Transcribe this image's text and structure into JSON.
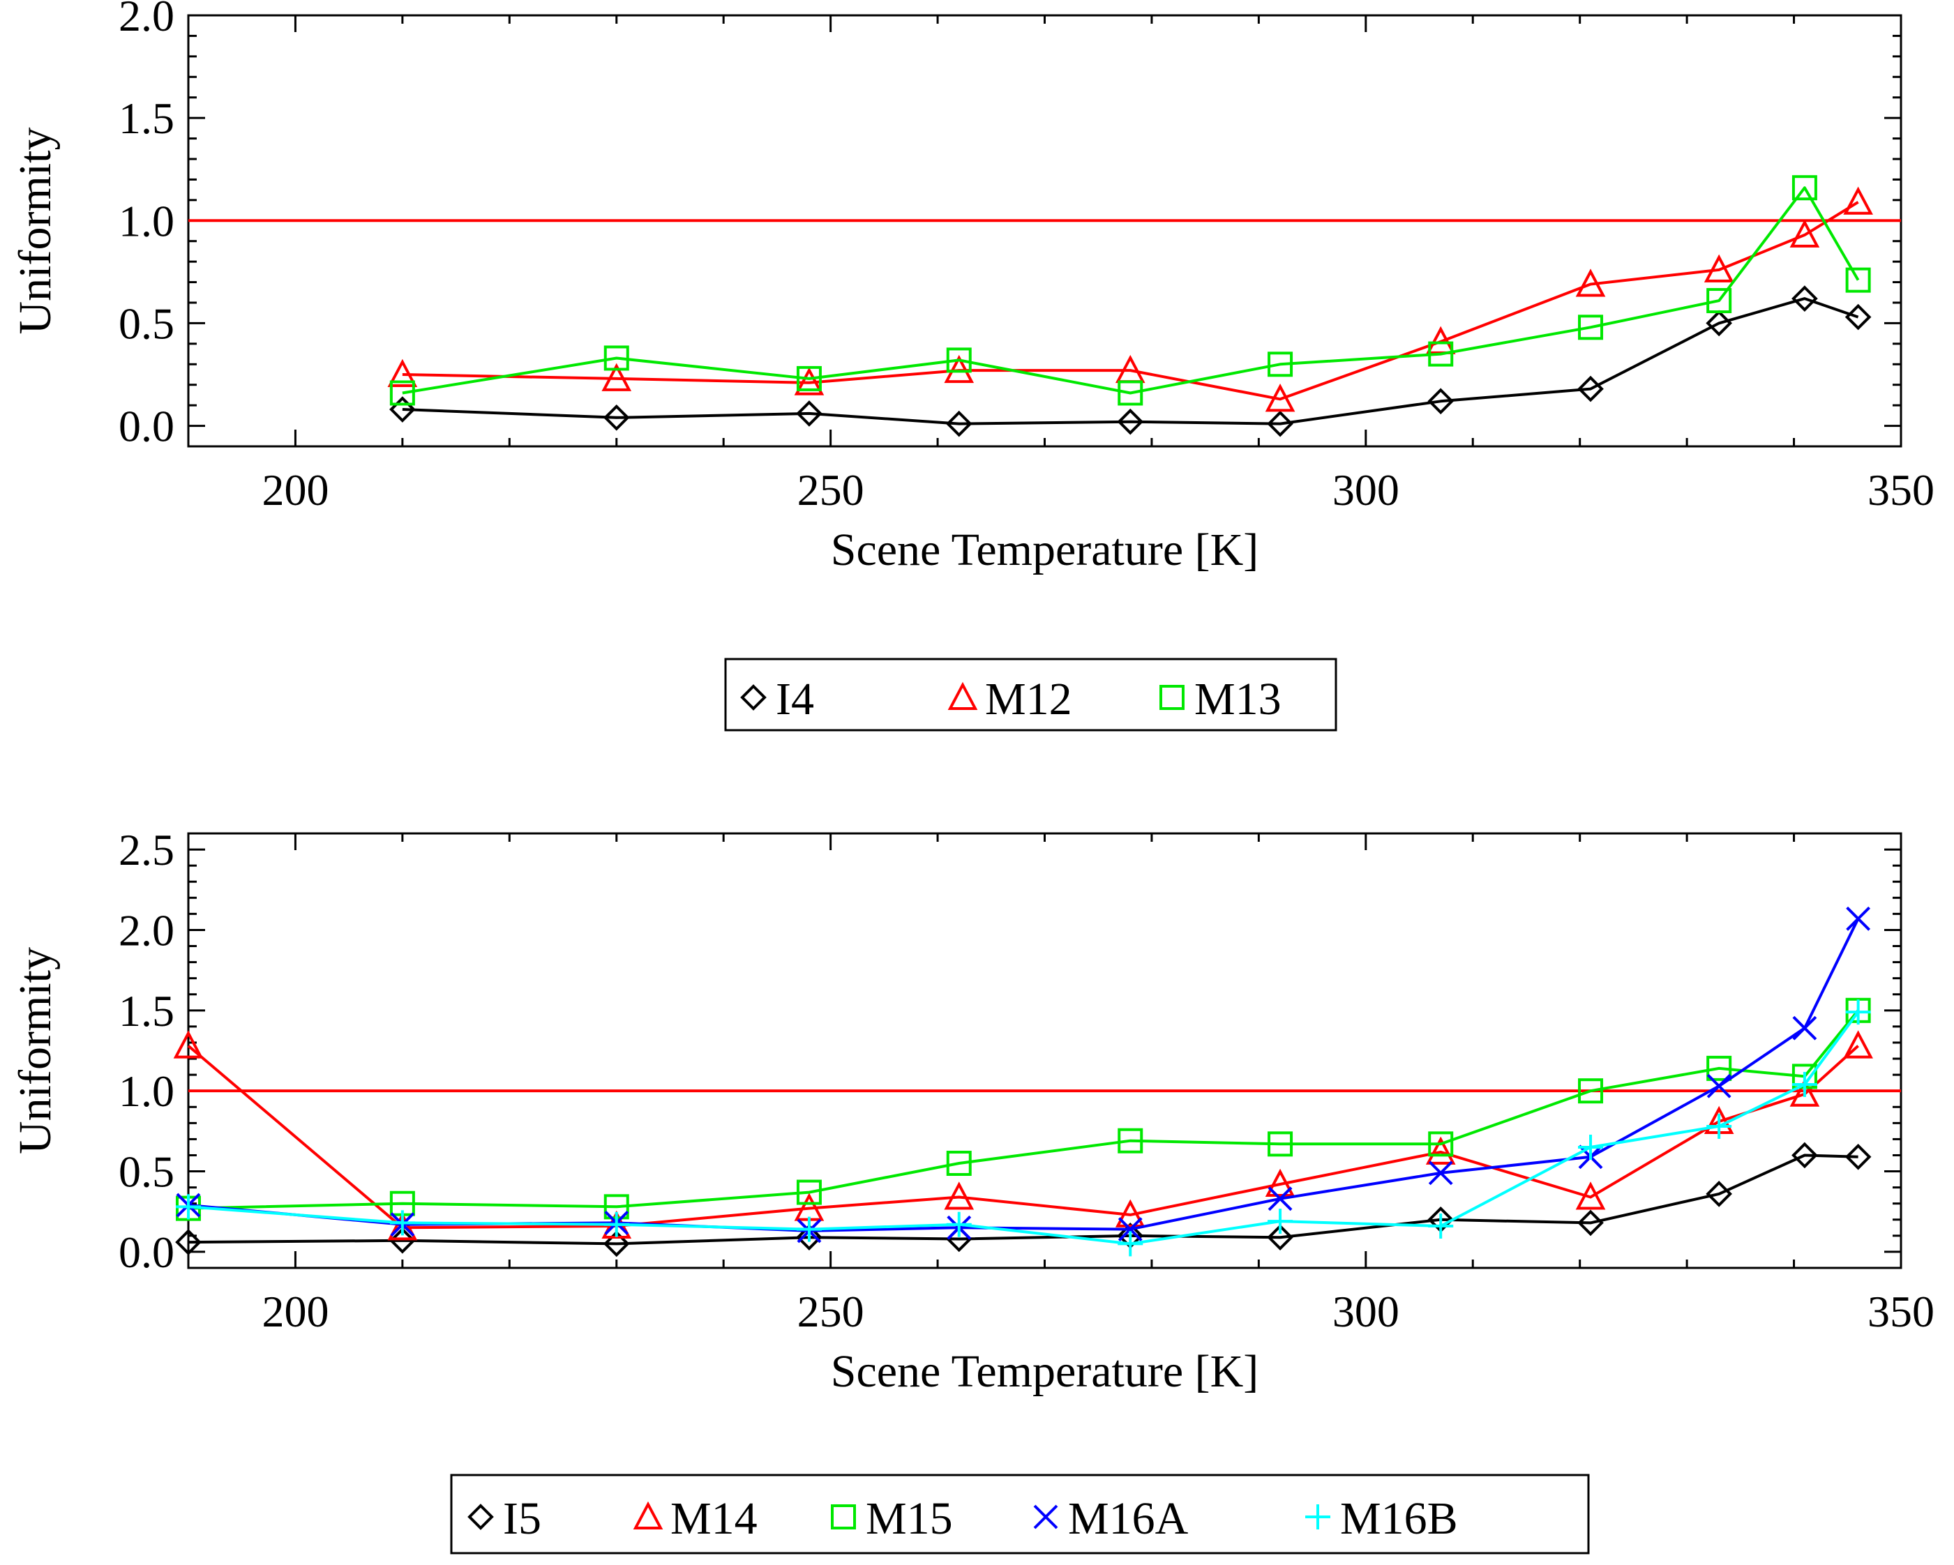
{
  "chart_data": [
    {
      "type": "line",
      "xlabel": "Scene Temperature [K]",
      "ylabel": "Uniformity",
      "xlim": [
        190,
        350
      ],
      "ylim": [
        -0.1,
        2.0
      ],
      "x_ticks": [
        200,
        250,
        300,
        350
      ],
      "x_tick_labels": [
        "200",
        "250",
        "300",
        "350"
      ],
      "y_ticks": [
        0.0,
        0.5,
        1.0,
        1.5,
        2.0
      ],
      "y_tick_labels": [
        "0.0",
        "0.5",
        "1.0",
        "1.5",
        "2.0"
      ],
      "reference_line": {
        "y": 1.0,
        "color": "#ff0000"
      },
      "legend_position": "bottom-center",
      "series": [
        {
          "name": "I4",
          "color": "#000000",
          "marker": "diamond",
          "x": [
            210,
            230,
            248,
            262,
            278,
            292,
            307,
            321,
            333,
            341,
            346
          ],
          "y": [
            0.08,
            0.04,
            0.06,
            0.01,
            0.02,
            0.01,
            0.12,
            0.18,
            0.5,
            0.62,
            0.53
          ]
        },
        {
          "name": "M12",
          "color": "#ff0000",
          "marker": "triangle",
          "x": [
            210,
            230,
            248,
            262,
            278,
            292,
            307,
            321,
            333,
            341,
            346
          ],
          "y": [
            0.25,
            0.23,
            0.21,
            0.27,
            0.27,
            0.13,
            0.41,
            0.69,
            0.76,
            0.93,
            1.09
          ]
        },
        {
          "name": "M13",
          "color": "#00e800",
          "marker": "square",
          "x": [
            210,
            230,
            248,
            262,
            278,
            292,
            307,
            321,
            333,
            341,
            346
          ],
          "y": [
            0.16,
            0.33,
            0.23,
            0.32,
            0.16,
            0.3,
            0.35,
            0.48,
            0.61,
            1.16,
            0.71
          ]
        }
      ]
    },
    {
      "type": "line",
      "xlabel": "Scene Temperature [K]",
      "ylabel": "Uniformity",
      "xlim": [
        190,
        350
      ],
      "ylim": [
        -0.1,
        2.6
      ],
      "x_ticks": [
        200,
        250,
        300,
        350
      ],
      "x_tick_labels": [
        "200",
        "250",
        "300",
        "350"
      ],
      "y_ticks": [
        0.0,
        0.5,
        1.0,
        1.5,
        2.0,
        2.5
      ],
      "y_tick_labels": [
        "0.0",
        "0.5",
        "1.0",
        "1.5",
        "2.0",
        "2.5"
      ],
      "reference_line": {
        "y": 1.0,
        "color": "#ff0000"
      },
      "legend_position": "bottom-center",
      "series": [
        {
          "name": "I5",
          "color": "#000000",
          "marker": "diamond",
          "x": [
            190,
            210,
            230,
            248,
            262,
            278,
            292,
            307,
            321,
            333,
            341,
            346
          ],
          "y": [
            0.06,
            0.07,
            0.05,
            0.09,
            0.08,
            0.1,
            0.09,
            0.2,
            0.18,
            0.36,
            0.6,
            0.59
          ]
        },
        {
          "name": "M14",
          "color": "#ff0000",
          "marker": "triangle",
          "x": [
            190,
            210,
            230,
            248,
            262,
            278,
            292,
            307,
            321,
            333,
            341,
            346
          ],
          "y": [
            1.28,
            0.15,
            0.16,
            0.27,
            0.34,
            0.23,
            0.42,
            0.62,
            0.34,
            0.81,
            0.98,
            1.28
          ]
        },
        {
          "name": "M15",
          "color": "#00e800",
          "marker": "square",
          "x": [
            190,
            210,
            230,
            248,
            262,
            278,
            292,
            307,
            321,
            333,
            341,
            346
          ],
          "y": [
            0.27,
            0.3,
            0.28,
            0.37,
            0.55,
            0.69,
            0.67,
            0.67,
            1.0,
            1.14,
            1.09,
            1.5
          ]
        },
        {
          "name": "M16A",
          "color": "#0000ff",
          "marker": "x",
          "x": [
            190,
            210,
            230,
            248,
            262,
            278,
            292,
            307,
            321,
            333,
            341,
            346
          ],
          "y": [
            0.29,
            0.17,
            0.18,
            0.13,
            0.15,
            0.14,
            0.33,
            0.49,
            0.59,
            1.03,
            1.39,
            2.07
          ]
        },
        {
          "name": "M16B",
          "color": "#00ffff",
          "marker": "plus",
          "x": [
            190,
            210,
            230,
            248,
            262,
            278,
            292,
            307,
            321,
            333,
            341,
            346
          ],
          "y": [
            0.28,
            0.18,
            0.17,
            0.14,
            0.17,
            0.05,
            0.19,
            0.16,
            0.65,
            0.78,
            1.04,
            1.49
          ]
        }
      ]
    }
  ]
}
